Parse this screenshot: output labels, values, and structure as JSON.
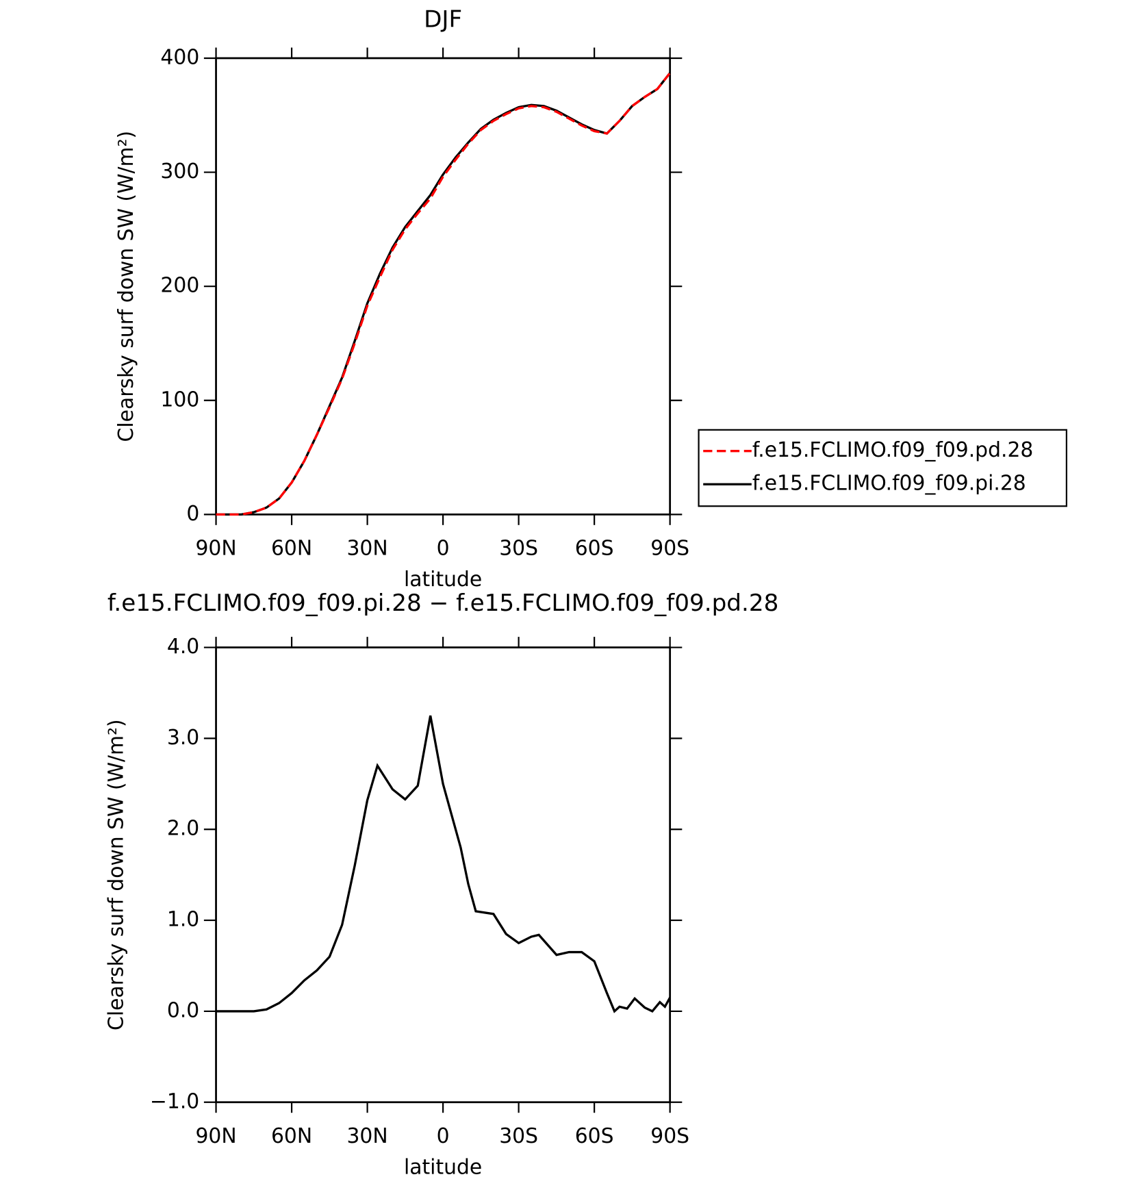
{
  "chart_data": [
    {
      "type": "line",
      "title": "DJF",
      "xlabel": "latitude",
      "ylabel": "Clearsky surf down SW (W/m²)",
      "x": [
        90,
        85,
        80,
        75,
        70,
        65,
        60,
        55,
        50,
        45,
        40,
        35,
        30,
        25,
        20,
        15,
        10,
        5,
        0,
        -5,
        -10,
        -15,
        -20,
        -25,
        -30,
        -35,
        -40,
        -45,
        -50,
        -55,
        -60,
        -65,
        -70,
        -75,
        -80,
        -85,
        -90
      ],
      "series": [
        {
          "name": "f.e15.FCLIMO.f09_f09.pd.28",
          "color": "#ff0000",
          "linestyle": "dashed",
          "values": [
            0,
            0,
            0,
            2,
            6,
            14,
            28,
            47,
            70,
            94,
            119,
            150,
            183,
            208,
            232,
            250,
            264,
            277,
            296,
            311,
            325,
            337,
            345,
            351,
            356,
            358,
            357,
            353,
            347,
            341,
            336,
            334,
            345,
            358,
            366,
            373,
            387
          ]
        },
        {
          "name": "f.e15.FCLIMO.f09_f09.pi.28",
          "color": "#000000",
          "linestyle": "solid",
          "values": [
            0,
            0,
            0,
            2,
            6,
            14,
            28,
            47,
            70,
            95,
            120,
            152,
            185,
            211,
            234,
            252,
            266,
            280,
            298,
            313,
            326,
            338,
            346,
            352,
            357,
            359,
            358,
            354,
            348,
            342,
            337,
            334,
            345,
            358,
            366,
            373,
            387
          ]
        }
      ],
      "xlim": [
        90,
        -90
      ],
      "xticks": [
        {
          "value": 90,
          "label": "90N"
        },
        {
          "value": 60,
          "label": "60N"
        },
        {
          "value": 30,
          "label": "30N"
        },
        0,
        {
          "value": -30,
          "label": "30S"
        },
        {
          "value": -60,
          "label": "60S"
        },
        {
          "value": -90,
          "label": "90S"
        }
      ],
      "ylim": [
        0,
        400
      ],
      "yticks": [
        0,
        100,
        200,
        300,
        400
      ],
      "legend": "right"
    },
    {
      "type": "line",
      "title": "f.e15.FCLIMO.f09_f09.pi.28 − f.e15.FCLIMO.f09_f09.pd.28",
      "xlabel": "latitude",
      "ylabel": "Clearsky surf down SW (W/m²)",
      "x": [
        90,
        85,
        80,
        75,
        70,
        65,
        60,
        55,
        50,
        45,
        40,
        35,
        30,
        26,
        20,
        15,
        10,
        5,
        2,
        0,
        -3,
        -7,
        -10,
        -13,
        -20,
        -25,
        -30,
        -35,
        -38,
        -45,
        -50,
        -55,
        -60,
        -65,
        -68,
        -70,
        -73,
        -76,
        -80,
        -83,
        -86,
        -88,
        -90
      ],
      "series": [
        {
          "color": "#000000",
          "linestyle": "solid",
          "values": [
            0,
            0,
            0,
            0,
            0.02,
            0.09,
            0.2,
            0.34,
            0.45,
            0.6,
            0.95,
            1.6,
            2.32,
            2.7,
            2.44,
            2.33,
            2.48,
            3.25,
            2.8,
            2.5,
            2.2,
            1.8,
            1.4,
            1.1,
            1.07,
            0.85,
            0.75,
            0.82,
            0.84,
            0.62,
            0.65,
            0.65,
            0.55,
            0.2,
            0,
            0.05,
            0.03,
            0.14,
            0.04,
            0,
            0.1,
            0.05,
            0.15
          ]
        }
      ],
      "xlim": [
        90,
        -90
      ],
      "xticks": [
        {
          "value": 90,
          "label": "90N"
        },
        {
          "value": 60,
          "label": "60N"
        },
        {
          "value": 30,
          "label": "30N"
        },
        0,
        {
          "value": -30,
          "label": "30S"
        },
        {
          "value": -60,
          "label": "60S"
        },
        {
          "value": -90,
          "label": "90S"
        }
      ],
      "ylim": [
        -1,
        4
      ],
      "yticks": [
        {
          "value": -1,
          "label": "−1.0"
        },
        {
          "value": 0,
          "label": "0.0"
        },
        {
          "value": 1,
          "label": "1.0"
        },
        {
          "value": 2,
          "label": "2.0"
        },
        {
          "value": 3,
          "label": "3.0"
        },
        {
          "value": 4,
          "label": "4.0"
        }
      ]
    }
  ]
}
